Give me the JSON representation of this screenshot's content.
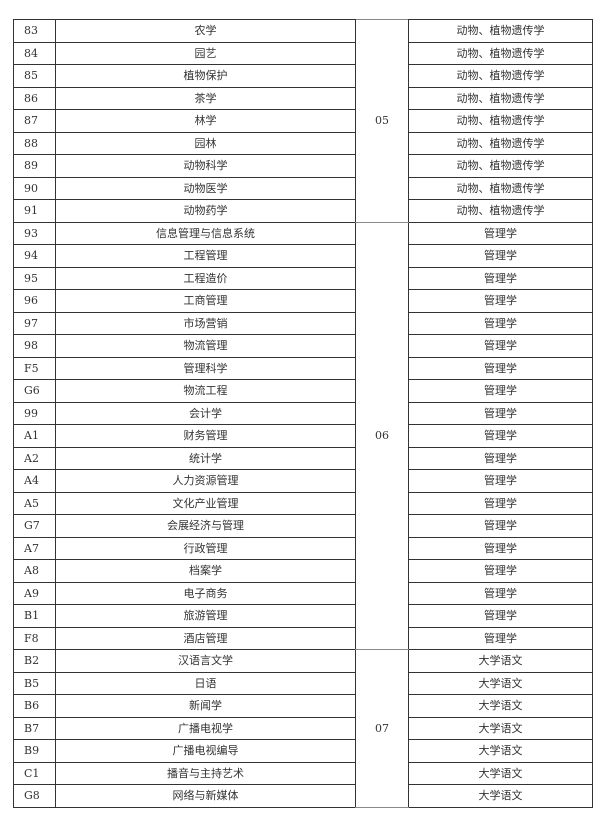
{
  "groups": [
    {
      "group_code": "05",
      "rows": [
        {
          "code": "83",
          "major": "农学",
          "subject": "动物、植物遗传学"
        },
        {
          "code": "84",
          "major": "园艺",
          "subject": "动物、植物遗传学"
        },
        {
          "code": "85",
          "major": "植物保护",
          "subject": "动物、植物遗传学"
        },
        {
          "code": "86",
          "major": "茶学",
          "subject": "动物、植物遗传学"
        },
        {
          "code": "87",
          "major": "林学",
          "subject": "动物、植物遗传学"
        },
        {
          "code": "88",
          "major": "园林",
          "subject": "动物、植物遗传学"
        },
        {
          "code": "89",
          "major": "动物科学",
          "subject": "动物、植物遗传学"
        },
        {
          "code": "90",
          "major": "动物医学",
          "subject": "动物、植物遗传学"
        },
        {
          "code": "91",
          "major": "动物药学",
          "subject": "动物、植物遗传学"
        }
      ]
    },
    {
      "group_code": "06",
      "rows": [
        {
          "code": "93",
          "major": "信息管理与信息系统",
          "subject": "管理学"
        },
        {
          "code": "94",
          "major": "工程管理",
          "subject": "管理学"
        },
        {
          "code": "95",
          "major": "工程造价",
          "subject": "管理学"
        },
        {
          "code": "96",
          "major": "工商管理",
          "subject": "管理学"
        },
        {
          "code": "97",
          "major": "市场营销",
          "subject": "管理学"
        },
        {
          "code": "98",
          "major": "物流管理",
          "subject": "管理学"
        },
        {
          "code": "F5",
          "major": "管理科学",
          "subject": "管理学"
        },
        {
          "code": "G6",
          "major": "物流工程",
          "subject": "管理学"
        },
        {
          "code": "99",
          "major": "会计学",
          "subject": "管理学"
        },
        {
          "code": "A1",
          "major": "财务管理",
          "subject": "管理学"
        },
        {
          "code": "A2",
          "major": "统计学",
          "subject": "管理学"
        },
        {
          "code": "A4",
          "major": "人力资源管理",
          "subject": "管理学"
        },
        {
          "code": "A5",
          "major": "文化产业管理",
          "subject": "管理学"
        },
        {
          "code": "G7",
          "major": "会展经济与管理",
          "subject": "管理学"
        },
        {
          "code": "A7",
          "major": "行政管理",
          "subject": "管理学"
        },
        {
          "code": "A8",
          "major": "档案学",
          "subject": "管理学"
        },
        {
          "code": "A9",
          "major": "电子商务",
          "subject": "管理学"
        },
        {
          "code": "B1",
          "major": "旅游管理",
          "subject": "管理学"
        },
        {
          "code": "F8",
          "major": "酒店管理",
          "subject": "管理学"
        }
      ]
    },
    {
      "group_code": "07",
      "rows": [
        {
          "code": "B2",
          "major": "汉语言文学",
          "subject": "大学语文"
        },
        {
          "code": "B5",
          "major": "日语",
          "subject": "大学语文"
        },
        {
          "code": "B6",
          "major": "新闻学",
          "subject": "大学语文"
        },
        {
          "code": "B7",
          "major": "广播电视学",
          "subject": "大学语文"
        },
        {
          "code": "B9",
          "major": "广播电视编导",
          "subject": "大学语文"
        },
        {
          "code": "C1",
          "major": "播音与主持艺术",
          "subject": "大学语文"
        },
        {
          "code": "G8",
          "major": "网络与新媒体",
          "subject": "大学语文"
        }
      ]
    }
  ]
}
